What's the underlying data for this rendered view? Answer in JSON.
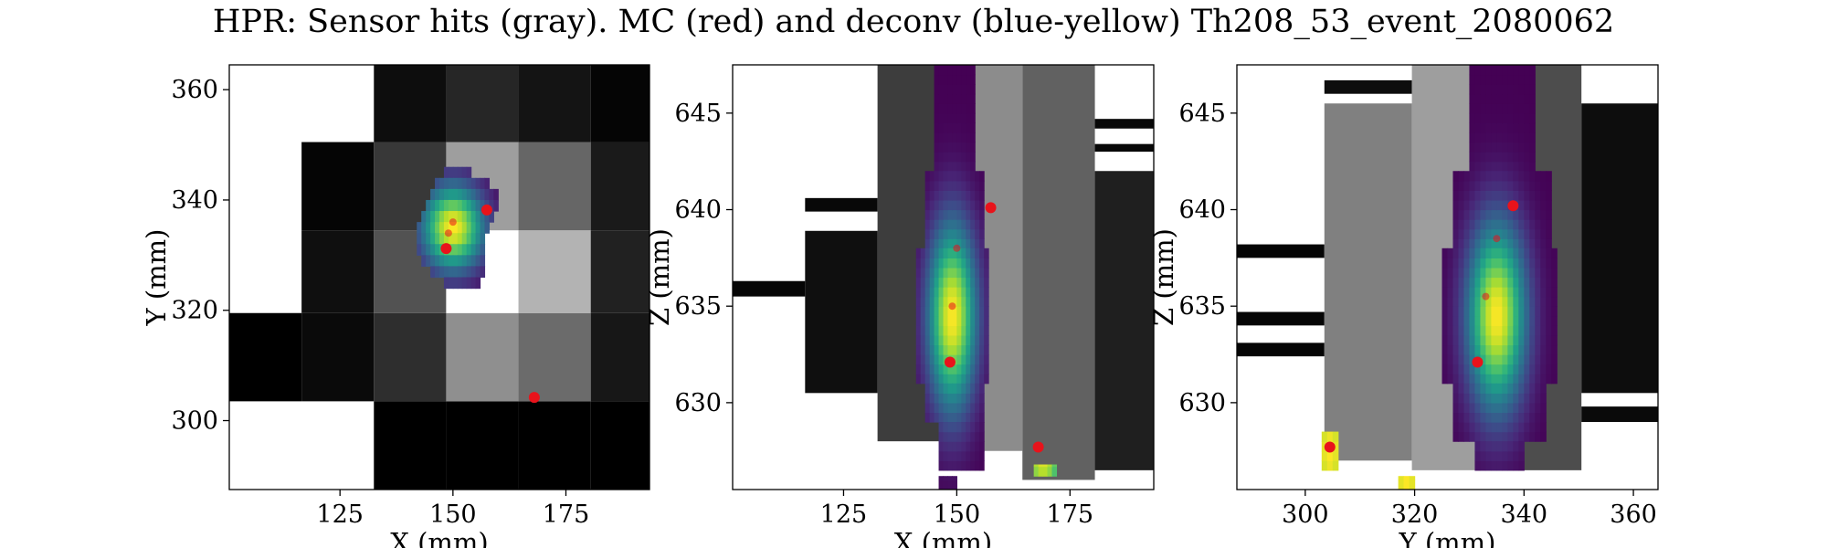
{
  "title": "HPR: Sensor hits (gray). MC (red) and deconv (blue-yellow) Th208_53_event_2080062",
  "colors": {
    "mc_points": "#e8131b",
    "sensor_cmap": "gray",
    "deconv_cmap": "viridis"
  },
  "chart_data": [
    {
      "type": "heatmap",
      "panel": "XY",
      "xlabel": "X (mm)",
      "ylabel": "Y (mm)",
      "xlim": [
        100.5,
        193.5
      ],
      "ylim": [
        287.5,
        364.5
      ],
      "xticks": [
        125,
        150,
        175
      ],
      "yticks": [
        300,
        320,
        340,
        360
      ],
      "sensor_hits": [
        {
          "x0": 100.5,
          "x1": 116.5,
          "y0": 303.5,
          "y1": 319.5,
          "v": 0.0
        },
        {
          "x0": 116.5,
          "x1": 132.5,
          "y0": 303.5,
          "y1": 319.5,
          "v": 0.04
        },
        {
          "x0": 116.5,
          "x1": 132.5,
          "y0": 319.5,
          "y1": 334.5,
          "v": 0.06
        },
        {
          "x0": 116.5,
          "x1": 132.5,
          "y0": 334.5,
          "y1": 350.5,
          "v": 0.02
        },
        {
          "x0": 132.5,
          "x1": 148.5,
          "y0": 287.5,
          "y1": 303.5,
          "v": 0.0
        },
        {
          "x0": 132.5,
          "x1": 148.5,
          "y0": 303.5,
          "y1": 319.5,
          "v": 0.18
        },
        {
          "x0": 132.5,
          "x1": 148.5,
          "y0": 319.5,
          "y1": 334.5,
          "v": 0.32
        },
        {
          "x0": 132.5,
          "x1": 148.5,
          "y0": 334.5,
          "y1": 350.5,
          "v": 0.22
        },
        {
          "x0": 132.5,
          "x1": 148.5,
          "y0": 350.5,
          "y1": 364.5,
          "v": 0.05
        },
        {
          "x0": 148.5,
          "x1": 164.5,
          "y0": 287.5,
          "y1": 303.5,
          "v": 0.0
        },
        {
          "x0": 148.5,
          "x1": 164.5,
          "y0": 303.5,
          "y1": 319.5,
          "v": 0.56
        },
        {
          "x0": 148.5,
          "x1": 164.5,
          "y0": 319.5,
          "y1": 334.5,
          "v": 1.0
        },
        {
          "x0": 148.5,
          "x1": 164.5,
          "y0": 334.5,
          "y1": 350.5,
          "v": 0.62
        },
        {
          "x0": 148.5,
          "x1": 164.5,
          "y0": 350.5,
          "y1": 364.5,
          "v": 0.15
        },
        {
          "x0": 164.5,
          "x1": 180.5,
          "y0": 287.5,
          "y1": 303.5,
          "v": 0.0
        },
        {
          "x0": 164.5,
          "x1": 180.5,
          "y0": 303.5,
          "y1": 319.5,
          "v": 0.42
        },
        {
          "x0": 164.5,
          "x1": 180.5,
          "y0": 319.5,
          "y1": 334.5,
          "v": 0.7
        },
        {
          "x0": 164.5,
          "x1": 180.5,
          "y0": 334.5,
          "y1": 350.5,
          "v": 0.4
        },
        {
          "x0": 164.5,
          "x1": 180.5,
          "y0": 350.5,
          "y1": 364.5,
          "v": 0.08
        },
        {
          "x0": 180.5,
          "x1": 193.5,
          "y0": 287.5,
          "y1": 303.5,
          "v": 0.0
        },
        {
          "x0": 180.5,
          "x1": 193.5,
          "y0": 303.5,
          "y1": 319.5,
          "v": 0.09
        },
        {
          "x0": 180.5,
          "x1": 193.5,
          "y0": 319.5,
          "y1": 334.5,
          "v": 0.13
        },
        {
          "x0": 180.5,
          "x1": 193.5,
          "y0": 334.5,
          "y1": 350.5,
          "v": 0.1
        },
        {
          "x0": 180.5,
          "x1": 193.5,
          "y0": 350.5,
          "y1": 364.5,
          "v": 0.02
        }
      ],
      "deconv": [
        {
          "row": 344.0,
          "x0": 148.0,
          "x1": 154.0,
          "cx": 150.0,
          "cy": 334.0
        },
        {
          "row": 342.0,
          "x0": 146.0,
          "x1": 158.0,
          "cx": 150.0,
          "cy": 334.0
        },
        {
          "row": 340.0,
          "x0": 145.0,
          "x1": 160.0,
          "cx": 150.0,
          "cy": 334.0
        },
        {
          "row": 338.0,
          "x0": 144.0,
          "x1": 160.0,
          "cx": 150.0,
          "cy": 334.0
        },
        {
          "row": 336.0,
          "x0": 143.0,
          "x1": 159.0,
          "cx": 150.0,
          "cy": 334.0
        },
        {
          "row": 334.0,
          "x0": 142.0,
          "x1": 158.0,
          "cx": 150.0,
          "cy": 334.0
        },
        {
          "row": 332.0,
          "x0": 142.0,
          "x1": 157.0,
          "cx": 150.0,
          "cy": 334.0
        },
        {
          "row": 330.0,
          "x0": 142.0,
          "x1": 157.0,
          "cx": 150.0,
          "cy": 334.0
        },
        {
          "row": 328.0,
          "x0": 143.0,
          "x1": 157.0,
          "cx": 150.0,
          "cy": 334.0
        },
        {
          "row": 326.0,
          "x0": 145.0,
          "x1": 157.0,
          "cx": 150.0,
          "cy": 334.0
        },
        {
          "row": 324.0,
          "x0": 148.0,
          "x1": 156.0,
          "cx": 150.0,
          "cy": 334.0
        }
      ],
      "mc_hits": [
        {
          "x": 157.5,
          "y": 338.2
        },
        {
          "x": 148.5,
          "y": 331.2
        },
        {
          "x": 168.0,
          "y": 304.2
        },
        {
          "x": 150.0,
          "y": 336.0
        },
        {
          "x": 149.0,
          "y": 334.0
        }
      ]
    },
    {
      "type": "heatmap",
      "panel": "XZ",
      "xlabel": "X (mm)",
      "ylabel": "Z (mm)",
      "xlim": [
        100.5,
        193.5
      ],
      "ylim": [
        625.5,
        647.5
      ],
      "xticks": [
        125,
        150,
        175
      ],
      "yticks": [
        630,
        635,
        640,
        645
      ],
      "sensor_hits": [
        {
          "x0": 100.5,
          "x1": 116.5,
          "y0": 635.5,
          "y1": 636.3,
          "v": 0.02
        },
        {
          "x0": 116.5,
          "x1": 132.5,
          "y0": 639.9,
          "y1": 640.6,
          "v": 0.03
        },
        {
          "x0": 116.5,
          "x1": 132.5,
          "y0": 630.5,
          "y1": 638.9,
          "v": 0.06
        },
        {
          "x0": 132.5,
          "x1": 148.5,
          "y0": 628.0,
          "y1": 647.5,
          "v": 0.24
        },
        {
          "x0": 148.5,
          "x1": 164.5,
          "y0": 627.5,
          "y1": 647.5,
          "v": 0.55
        },
        {
          "x0": 164.5,
          "x1": 180.5,
          "y0": 626.0,
          "y1": 647.5,
          "v": 0.38
        },
        {
          "x0": 180.5,
          "x1": 193.5,
          "y0": 626.5,
          "y1": 642.0,
          "v": 0.12
        },
        {
          "x0": 180.5,
          "x1": 193.5,
          "y0": 643.0,
          "y1": 643.4,
          "v": 0.03
        },
        {
          "x0": 180.5,
          "x1": 193.5,
          "y0": 644.2,
          "y1": 644.7,
          "v": 0.03
        }
      ],
      "deconv": [
        {
          "z0": 642.0,
          "z1": 647.5,
          "x0": 145.0,
          "x1": 154.0,
          "cx": 149.0,
          "cz": 634.5
        },
        {
          "z0": 638.0,
          "z1": 642.0,
          "x0": 143.0,
          "x1": 156.0,
          "cx": 149.0,
          "cz": 634.5
        },
        {
          "z0": 631.0,
          "z1": 638.0,
          "x0": 141.0,
          "x1": 157.0,
          "cx": 149.0,
          "cz": 634.5
        },
        {
          "z0": 629.0,
          "z1": 631.0,
          "x0": 143.0,
          "x1": 156.0,
          "cx": 149.0,
          "cz": 634.5
        },
        {
          "z0": 626.5,
          "z1": 629.0,
          "x0": 146.0,
          "x1": 156.0,
          "cx": 149.0,
          "cz": 634.5
        },
        {
          "z0": 625.5,
          "z1": 626.2,
          "x0": 146.0,
          "x1": 150.0,
          "cx": 149.0,
          "cz": 634.5
        },
        {
          "z0": 626.2,
          "z1": 626.8,
          "x0": 167.0,
          "x1": 172.0,
          "cx": 169.0,
          "cz": 628.0
        }
      ],
      "mc_hits": [
        {
          "x": 157.5,
          "z": 640.1
        },
        {
          "x": 148.5,
          "z": 632.1
        },
        {
          "x": 168.0,
          "z": 627.7
        },
        {
          "x": 149.0,
          "z": 635.0
        },
        {
          "x": 150.0,
          "z": 638.0
        }
      ]
    },
    {
      "type": "heatmap",
      "panel": "YZ",
      "xlabel": "Y (mm)",
      "ylabel": "Z (mm)",
      "xlim": [
        287.5,
        364.5
      ],
      "ylim": [
        625.5,
        647.5
      ],
      "xticks": [
        300,
        320,
        340,
        360
      ],
      "yticks": [
        630,
        635,
        640,
        645
      ],
      "sensor_hits": [
        {
          "x0": 287.5,
          "x1": 303.5,
          "y0": 637.5,
          "y1": 638.2,
          "v": 0.02
        },
        {
          "x0": 287.5,
          "x1": 303.5,
          "y0": 634.0,
          "y1": 634.7,
          "v": 0.02
        },
        {
          "x0": 287.5,
          "x1": 303.5,
          "y0": 632.4,
          "y1": 633.1,
          "v": 0.02
        },
        {
          "x0": 303.5,
          "x1": 319.5,
          "y0": 627.0,
          "y1": 645.5,
          "v": 0.5
        },
        {
          "x0": 303.5,
          "x1": 319.5,
          "y0": 646.0,
          "y1": 646.7,
          "v": 0.05
        },
        {
          "x0": 319.5,
          "x1": 334.5,
          "y0": 626.5,
          "y1": 647.5,
          "v": 0.62
        },
        {
          "x0": 334.5,
          "x1": 350.5,
          "y0": 626.5,
          "y1": 647.5,
          "v": 0.3
        },
        {
          "x0": 350.5,
          "x1": 364.5,
          "y0": 630.5,
          "y1": 645.5,
          "v": 0.05
        },
        {
          "x0": 350.5,
          "x1": 364.5,
          "y0": 629.0,
          "y1": 629.8,
          "v": 0.04
        }
      ],
      "deconv": [
        {
          "z0": 642.0,
          "z1": 647.5,
          "x0": 330.0,
          "x1": 342.0,
          "cx": 335.0,
          "cz": 634.5
        },
        {
          "z0": 638.0,
          "z1": 642.0,
          "x0": 327.0,
          "x1": 345.0,
          "cx": 335.0,
          "cz": 634.5
        },
        {
          "z0": 631.0,
          "z1": 638.0,
          "x0": 325.0,
          "x1": 346.0,
          "cx": 335.0,
          "cz": 634.5
        },
        {
          "z0": 628.0,
          "z1": 631.0,
          "x0": 327.0,
          "x1": 344.0,
          "cx": 335.0,
          "cz": 634.5
        },
        {
          "z0": 626.5,
          "z1": 628.0,
          "x0": 331.0,
          "x1": 340.0,
          "cx": 335.0,
          "cz": 634.5
        },
        {
          "z0": 626.5,
          "z1": 628.5,
          "x0": 303.0,
          "x1": 306.0,
          "cx": 304.5,
          "cz": 627.5
        },
        {
          "z0": 625.5,
          "z1": 626.2,
          "x0": 317.0,
          "x1": 320.0,
          "cx": 318.5,
          "cz": 626.0
        }
      ],
      "mc_hits": [
        {
          "x": 338.0,
          "z": 640.2
        },
        {
          "x": 331.5,
          "z": 632.1
        },
        {
          "x": 304.5,
          "z": 627.7
        },
        {
          "x": 333.0,
          "z": 635.5
        },
        {
          "x": 335.0,
          "z": 638.5
        }
      ]
    }
  ]
}
